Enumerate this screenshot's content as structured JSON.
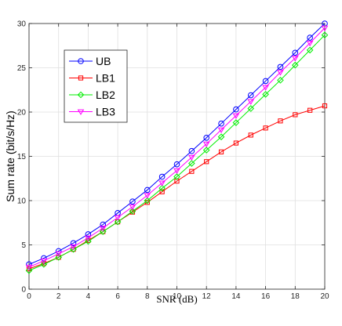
{
  "chart_data": {
    "type": "line",
    "title": "",
    "xlabel": "SNR (dB)",
    "ylabel": "Sum rate (bit/s/Hz)",
    "xlim": [
      0,
      20
    ],
    "ylim": [
      0,
      30
    ],
    "xticks": [
      0,
      2,
      4,
      6,
      8,
      10,
      12,
      14,
      16,
      18,
      20
    ],
    "yticks": [
      0,
      5,
      10,
      15,
      20,
      25,
      30
    ],
    "grid": true,
    "legend_position": "upper-left",
    "x": [
      0,
      1,
      2,
      3,
      4,
      5,
      6,
      7,
      8,
      9,
      10,
      11,
      12,
      13,
      14,
      15,
      16,
      17,
      18,
      19,
      20
    ],
    "series": [
      {
        "name": "UB",
        "color": "#0000ff",
        "marker": "circle",
        "values": [
          2.8,
          3.5,
          4.3,
          5.2,
          6.2,
          7.3,
          8.6,
          9.9,
          11.2,
          12.7,
          14.1,
          15.6,
          17.1,
          18.7,
          20.3,
          21.9,
          23.5,
          25.1,
          26.7,
          28.4,
          30.0
        ]
      },
      {
        "name": "LB1",
        "color": "#ff0000",
        "marker": "square",
        "values": [
          2.3,
          2.9,
          3.6,
          4.5,
          5.5,
          6.5,
          7.6,
          8.7,
          9.8,
          11.0,
          12.2,
          13.3,
          14.4,
          15.5,
          16.5,
          17.4,
          18.2,
          19.0,
          19.7,
          20.2,
          20.7
        ]
      },
      {
        "name": "LB2",
        "color": "#00ee00",
        "marker": "diamond",
        "values": [
          2.1,
          2.8,
          3.6,
          4.5,
          5.4,
          6.5,
          7.6,
          8.8,
          10.0,
          11.4,
          12.7,
          14.2,
          15.7,
          17.2,
          18.8,
          20.4,
          22.0,
          23.6,
          25.3,
          27.0,
          28.7
        ]
      },
      {
        "name": "LB3",
        "color": "#ff00ff",
        "marker": "triangle-down",
        "values": [
          2.5,
          3.2,
          4.0,
          4.8,
          5.8,
          6.9,
          8.1,
          9.3,
          10.6,
          12.0,
          13.4,
          14.9,
          16.4,
          18.0,
          19.6,
          21.2,
          22.8,
          24.5,
          26.1,
          27.8,
          29.5
        ]
      }
    ]
  }
}
